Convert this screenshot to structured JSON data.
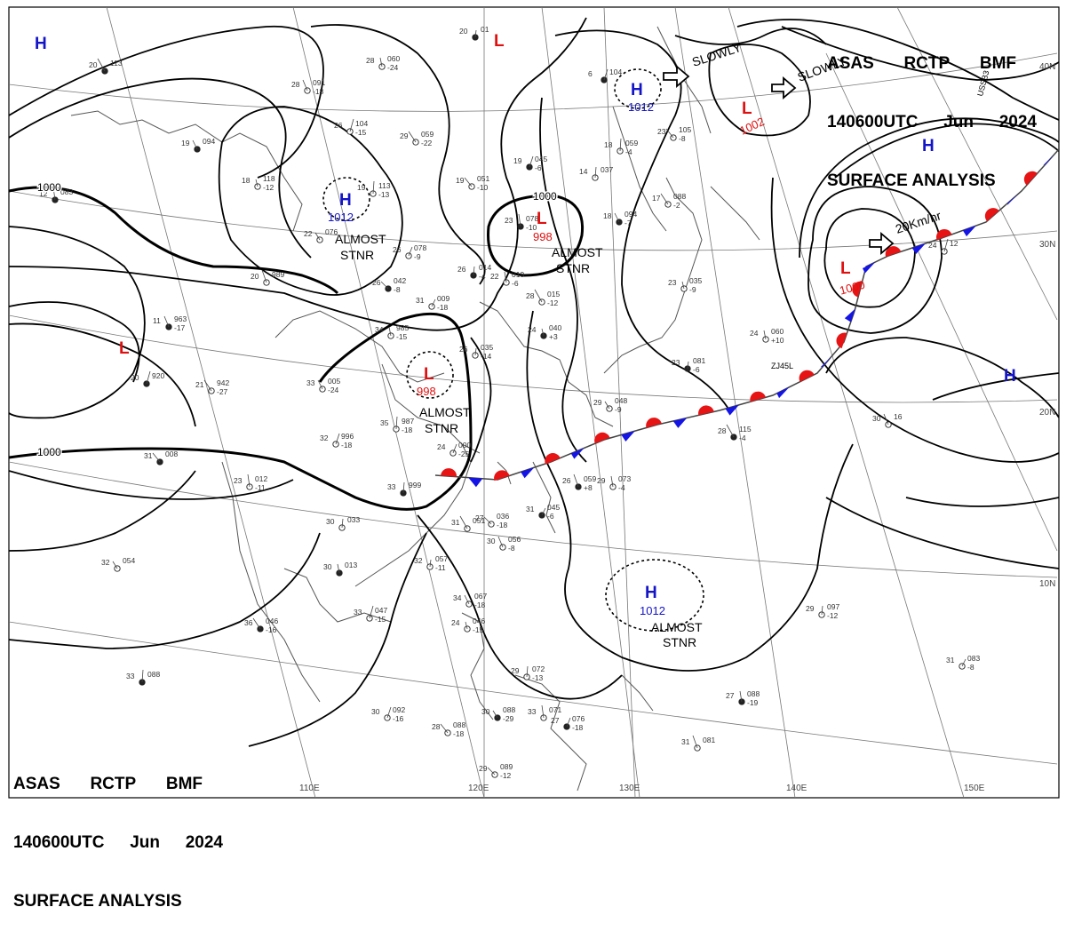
{
  "header": {
    "agency": "ASAS",
    "station": "RCTP",
    "code": "BMF",
    "time": "140600UTC",
    "month": "Jun",
    "year": "2024",
    "product": "SURFACE ANALYSIS"
  },
  "longitude_labels": [
    "110E",
    "120E",
    "130E",
    "140E",
    "150E"
  ],
  "latitude_labels": [
    "40N",
    "30N",
    "20N",
    "10N"
  ],
  "colors": {
    "high": "#1414c8",
    "low": "#e01010",
    "cold_front": "#1414e6",
    "warm_front": "#e61414",
    "isobar": "#000000",
    "coast": "#555555",
    "grid": "#777777"
  },
  "pressure_centers": [
    {
      "type": "H",
      "value": ""
    },
    {
      "type": "H",
      "value": "1012"
    },
    {
      "type": "H",
      "value": "1012"
    },
    {
      "type": "H",
      "value": "1012"
    },
    {
      "type": "H",
      "value": ""
    },
    {
      "type": "H",
      "value": ""
    },
    {
      "type": "L",
      "value": ""
    },
    {
      "type": "L",
      "value": "998"
    },
    {
      "type": "L",
      "value": "998"
    },
    {
      "type": "L",
      "value": "1002"
    },
    {
      "type": "L",
      "value": "1000"
    },
    {
      "type": "L",
      "value": ""
    }
  ],
  "isobar_labels": [
    "1000",
    "1000",
    "1000"
  ],
  "annotations": [
    {
      "line1": "ALMOST",
      "line2": "STNR"
    },
    {
      "line1": "ALMOST",
      "line2": "STNR"
    },
    {
      "line1": "ALMOST",
      "line2": "STNR"
    },
    {
      "line1": "ALMOST",
      "line2": "STNR"
    }
  ],
  "motions": [
    "SLOWLY",
    "SLOWLY",
    "20Km/hr"
  ],
  "ship_label": "USSB3",
  "ship_label_2": "ZJ45L",
  "stations": [
    [
      "20",
      "113"
    ],
    [
      "28",
      "091",
      "-18"
    ],
    [
      "28",
      "060",
      "-24"
    ],
    [
      "20",
      "01"
    ],
    [
      "26",
      "104",
      "-15"
    ],
    [
      "29",
      "059",
      "-22"
    ],
    [
      "19",
      "094"
    ],
    [
      "18",
      "118",
      "-12"
    ],
    [
      "19",
      "113",
      "-13"
    ],
    [
      "19",
      "045",
      "-6"
    ],
    [
      "19",
      "051",
      "-10"
    ],
    [
      "22",
      "076"
    ],
    [
      "23",
      "078",
      "-10"
    ],
    [
      "14",
      "037"
    ],
    [
      "26",
      "078",
      "-9"
    ],
    [
      "26",
      "042",
      "-8"
    ],
    [
      "20",
      "989"
    ],
    [
      "22",
      "019",
      "-6"
    ],
    [
      "26",
      "014",
      "-4"
    ],
    [
      "31",
      "009",
      "-18"
    ],
    [
      "28",
      "015",
      "-12"
    ],
    [
      "11",
      "963",
      "-17"
    ],
    [
      "34",
      "985",
      "-15"
    ],
    [
      "26",
      "035",
      "-14"
    ],
    [
      "20",
      "920"
    ],
    [
      "21",
      "942",
      "-27"
    ],
    [
      "33",
      "005",
      "-24"
    ],
    [
      "24",
      "040",
      "+3"
    ],
    [
      "35",
      "987",
      "-18"
    ],
    [
      "32",
      "996",
      "-18"
    ],
    [
      "31",
      "008"
    ],
    [
      "29",
      "048",
      "-9"
    ],
    [
      "23",
      "012",
      "-11"
    ],
    [
      "33",
      "999"
    ],
    [
      "24",
      "000",
      "-25"
    ],
    [
      "27",
      "036",
      "-18"
    ],
    [
      "26",
      "059",
      "+8"
    ],
    [
      "29",
      "073",
      "-4"
    ],
    [
      "30",
      "033"
    ],
    [
      "31",
      "045",
      "-6"
    ],
    [
      "31",
      "051"
    ],
    [
      "30",
      "056",
      "-8"
    ],
    [
      "30",
      "013"
    ],
    [
      "32",
      "057",
      "-11"
    ],
    [
      "33",
      "047",
      "-15"
    ],
    [
      "36",
      "046",
      "-16"
    ],
    [
      "34",
      "067",
      "-18"
    ],
    [
      "24",
      "046",
      "-15"
    ],
    [
      "33",
      "088"
    ],
    [
      "30",
      "092",
      "-16"
    ],
    [
      "28",
      "088",
      "-18"
    ],
    [
      "30",
      "088",
      "-29"
    ],
    [
      "33",
      "071"
    ],
    [
      "29",
      "072",
      "-13"
    ],
    [
      "27",
      "076",
      "-18"
    ],
    [
      "29",
      "089",
      "-12"
    ],
    [
      "31",
      "081"
    ],
    [
      "27",
      "088",
      "-19"
    ],
    [
      "29",
      "097",
      "-12"
    ],
    [
      "31",
      "083",
      "-8"
    ],
    [
      "28",
      "115",
      "-4"
    ],
    [
      "30",
      "16"
    ],
    [
      "24",
      "060",
      "+10"
    ],
    [
      "23",
      "081",
      "-6"
    ],
    [
      "24",
      "12"
    ],
    [
      "17",
      "088",
      "-2"
    ],
    [
      "18",
      "094",
      "-7"
    ],
    [
      "23",
      "035",
      "-9"
    ],
    [
      "18",
      "059",
      "-4"
    ],
    [
      "6",
      "104"
    ],
    [
      "23",
      "105",
      "-8"
    ],
    [
      "32",
      "054"
    ],
    [
      "12",
      "083"
    ]
  ]
}
